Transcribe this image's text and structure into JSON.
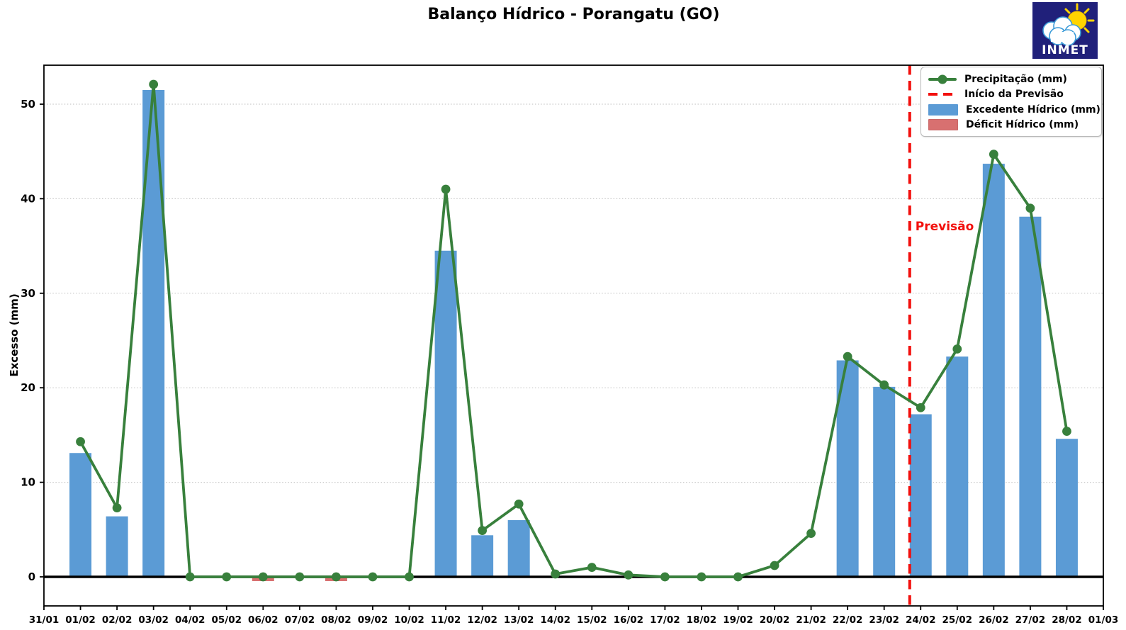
{
  "header": {
    "logo_text": "INMET"
  },
  "chart_data": {
    "type": "bar+line",
    "title": "Balanço Hídrico - Porangatu (GO)",
    "xlabel": "",
    "ylabel": "Excesso (mm)",
    "categories": [
      "31/01",
      "01/02",
      "02/02",
      "03/02",
      "04/02",
      "05/02",
      "06/02",
      "07/02",
      "08/02",
      "09/02",
      "10/02",
      "11/02",
      "12/02",
      "13/02",
      "14/02",
      "15/02",
      "16/02",
      "17/02",
      "18/02",
      "19/02",
      "20/02",
      "21/02",
      "22/02",
      "23/02",
      "24/02",
      "25/02",
      "26/02",
      "27/02",
      "28/02",
      "01/03"
    ],
    "series": [
      {
        "name": "Precipitação (mm)",
        "type": "line",
        "color": "#38803c",
        "values": [
          null,
          14.3,
          7.3,
          52.1,
          0,
          0,
          0,
          0,
          0,
          0,
          0,
          41.0,
          4.9,
          7.7,
          0.3,
          1.0,
          0.2,
          0,
          0,
          0,
          1.2,
          4.6,
          23.3,
          20.3,
          17.9,
          24.1,
          44.7,
          39.0,
          15.4,
          null
        ]
      },
      {
        "name": "Excedente Hídrico (mm)",
        "type": "bar",
        "color": "#5b9bd5",
        "values": [
          null,
          13.1,
          6.4,
          51.5,
          0,
          0,
          0,
          0,
          0,
          0,
          0,
          34.5,
          4.4,
          6.0,
          0,
          0,
          0,
          0,
          0,
          0,
          0,
          0,
          22.9,
          20.1,
          17.2,
          23.3,
          43.7,
          38.1,
          14.6,
          null
        ]
      },
      {
        "name": "Déficit Hídrico (mm)",
        "type": "bar",
        "color": "#d87070",
        "values": [
          0,
          0,
          0,
          0,
          0,
          0,
          -0.45,
          0,
          -0.45,
          0,
          0,
          0,
          0,
          0,
          0,
          0,
          0,
          0,
          0,
          0,
          0,
          0,
          0,
          0,
          0,
          0,
          0,
          0,
          0,
          0
        ]
      }
    ],
    "forecast": {
      "legend_label": "Início da Previsão",
      "annotation": "Previsão",
      "x_index": 23.7,
      "color": "#f20f0c"
    },
    "yticks": [
      0,
      10,
      20,
      30,
      40,
      50
    ],
    "ylim": [
      -3.1,
      54.1
    ],
    "grid": "horizontal dotted",
    "legend_position": "top-right",
    "legend": [
      "Precipitação (mm)",
      "Início da Previsão",
      "Excedente Hídrico (mm)",
      "Déficit Hídrico (mm)"
    ]
  }
}
